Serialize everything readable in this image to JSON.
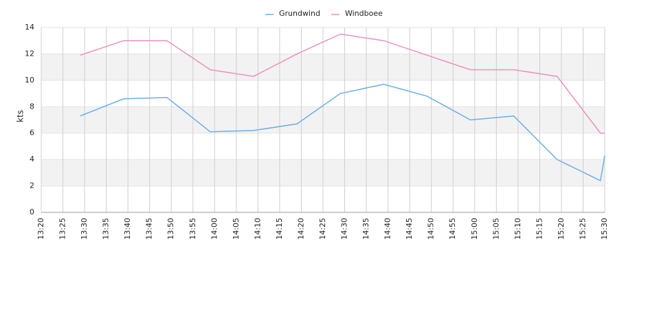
{
  "chart_data": {
    "type": "line",
    "y_label": "kts",
    "x": [
      "13:29",
      "13:39",
      "13:49",
      "13:59",
      "14:09",
      "14:19",
      "14:29",
      "14:39",
      "14:49",
      "14:59",
      "15:09",
      "15:19",
      "15:29",
      "15:30"
    ],
    "series": [
      {
        "name": "Grundwind",
        "color": "#6aaee8",
        "values": [
          7.3,
          8.6,
          8.7,
          6.1,
          6.2,
          6.7,
          9.0,
          9.7,
          8.8,
          7.0,
          7.3,
          4.0,
          2.4,
          4.3
        ]
      },
      {
        "name": "Windboee",
        "color": "#ee8fbf",
        "values": [
          11.9,
          13.0,
          13.0,
          10.8,
          10.3,
          12.0,
          13.5,
          13.0,
          11.9,
          10.8,
          10.8,
          10.3,
          6.0,
          6.0
        ]
      }
    ],
    "xlim": [
      "13:20",
      "15:30"
    ],
    "xticks": [
      "13:20",
      "13:25",
      "13:30",
      "13:35",
      "13:40",
      "13:45",
      "13:50",
      "13:55",
      "14:00",
      "14:05",
      "14:10",
      "14:15",
      "14:20",
      "14:25",
      "14:30",
      "14:35",
      "14:40",
      "14:45",
      "14:50",
      "14:55",
      "15:00",
      "15:05",
      "15:10",
      "15:15",
      "15:20",
      "15:25",
      "15:30"
    ],
    "ylim": [
      0,
      14
    ],
    "yticks": [
      0,
      2,
      4,
      6,
      8,
      10,
      12,
      14
    ],
    "grid": true,
    "legend": "top"
  }
}
